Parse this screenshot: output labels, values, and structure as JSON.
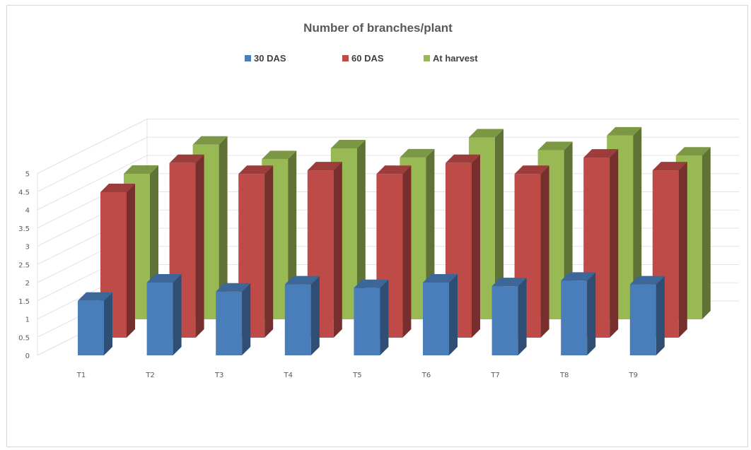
{
  "chart_data": {
    "type": "bar",
    "title": "Number of branches/plant",
    "categories": [
      "T1",
      "T2",
      "T3",
      "T4",
      "T5",
      "T6",
      "T7",
      "T8",
      "T9"
    ],
    "series": [
      {
        "name": "30 DAS",
        "color": "#4a7ebb",
        "values": [
          1.5,
          2.0,
          1.75,
          1.95,
          1.85,
          2.0,
          1.9,
          2.05,
          1.95
        ]
      },
      {
        "name": "60 DAS",
        "color": "#be4b48",
        "values": [
          4.0,
          4.8,
          4.5,
          4.6,
          4.5,
          4.8,
          4.5,
          4.95,
          4.6
        ]
      },
      {
        "name": "At harvest",
        "color": "#98b954",
        "values": [
          4.0,
          4.8,
          4.4,
          4.7,
          4.45,
          5.0,
          4.65,
          5.05,
          4.5
        ]
      }
    ],
    "yticks": [
      "0",
      "0.5",
      "1",
      "1.5",
      "2",
      "2.5",
      "3",
      "3.5",
      "4",
      "4.5",
      "5"
    ],
    "ylim": [
      0,
      5
    ],
    "grid": true,
    "legend_position": "top",
    "view": "3d"
  }
}
